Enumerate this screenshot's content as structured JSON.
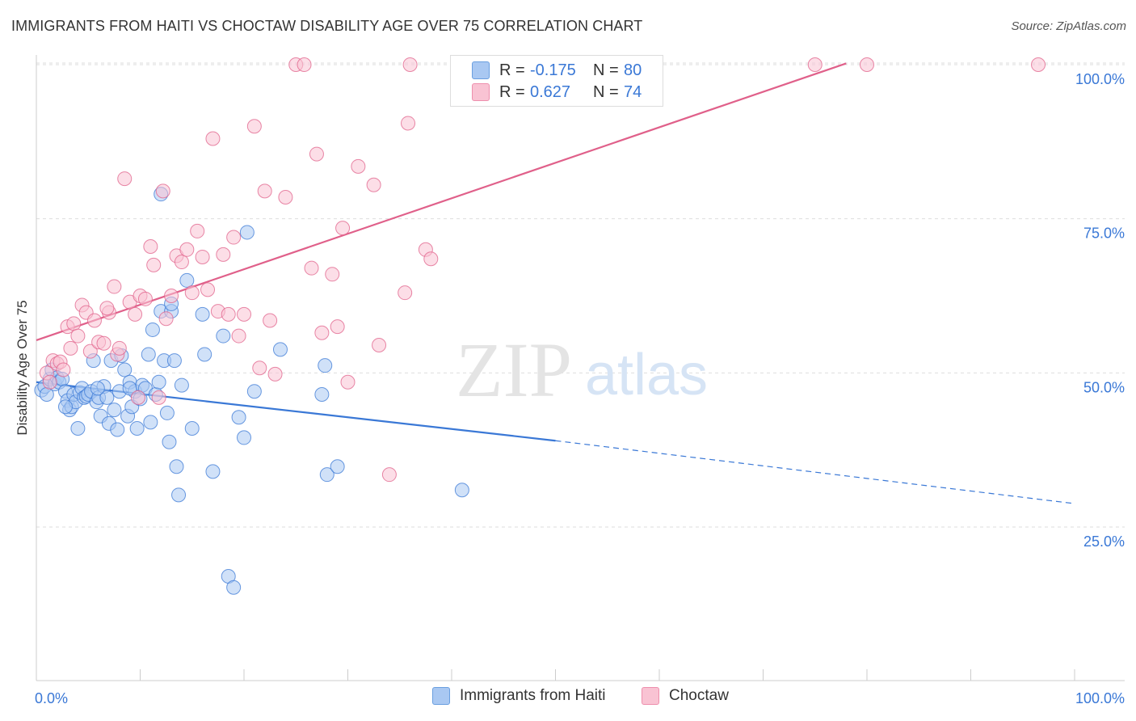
{
  "title": "IMMIGRANTS FROM HAITI VS CHOCTAW DISABILITY AGE OVER 75 CORRELATION CHART",
  "source": "Source: ZipAtlas.com",
  "watermark": {
    "zip": "ZIP",
    "atlas": "atlas"
  },
  "legend_top": {
    "rows": [
      {
        "r_label": "R =",
        "r_value": "-0.175",
        "n_label": "N =",
        "n_value": "80",
        "color": "#a9c8f2",
        "stroke": "#6a9fe0"
      },
      {
        "r_label": "R =",
        "r_value": "0.627",
        "n_label": "N =",
        "n_value": "74",
        "color": "#f9c3d3",
        "stroke": "#ee8fad"
      }
    ]
  },
  "chart_data": {
    "type": "scatter",
    "title": "IMMIGRANTS FROM HAITI VS CHOCTAW DISABILITY AGE OVER 75 CORRELATION CHART",
    "xlabel": "",
    "ylabel": "Disability Age Over 75",
    "xlim": [
      0,
      100
    ],
    "ylim": [
      0,
      103
    ],
    "x_tick_labels": [
      "0.0%",
      "100.0%"
    ],
    "y_ticks": [
      25,
      50,
      75,
      100
    ],
    "y_tick_labels": [
      "25.0%",
      "50.0%",
      "75.0%",
      "100.0%"
    ],
    "grid": true,
    "legend_position": "top-center",
    "series": [
      {
        "name": "Immigrants from Haiti",
        "color": "#3a78d6",
        "fill": "#a9c8f2",
        "points": [
          [
            0.5,
            47.2
          ],
          [
            0.8,
            47.8
          ],
          [
            1.0,
            46.5
          ],
          [
            1.3,
            49.0
          ],
          [
            1.5,
            50.5
          ],
          [
            1.8,
            48.2
          ],
          [
            2.0,
            49.2
          ],
          [
            2.2,
            48.5
          ],
          [
            2.5,
            49.0
          ],
          [
            2.8,
            47.0
          ],
          [
            3.0,
            45.5
          ],
          [
            3.2,
            44.0
          ],
          [
            3.4,
            44.5
          ],
          [
            3.6,
            46.5
          ],
          [
            3.8,
            45.3
          ],
          [
            4.0,
            41.0
          ],
          [
            4.2,
            46.8
          ],
          [
            4.4,
            47.5
          ],
          [
            4.6,
            46.0
          ],
          [
            4.8,
            46.2
          ],
          [
            5.0,
            46.5
          ],
          [
            5.3,
            47.0
          ],
          [
            5.5,
            52.0
          ],
          [
            5.8,
            45.3
          ],
          [
            6.0,
            46.0
          ],
          [
            6.2,
            43.0
          ],
          [
            6.5,
            47.8
          ],
          [
            6.8,
            46.0
          ],
          [
            7.0,
            41.8
          ],
          [
            7.2,
            52.0
          ],
          [
            7.5,
            44.0
          ],
          [
            7.8,
            40.8
          ],
          [
            8.0,
            47.0
          ],
          [
            8.2,
            52.8
          ],
          [
            8.5,
            50.5
          ],
          [
            8.8,
            43.0
          ],
          [
            9.0,
            48.5
          ],
          [
            9.2,
            44.5
          ],
          [
            9.5,
            47.0
          ],
          [
            9.7,
            41.0
          ],
          [
            10.0,
            45.8
          ],
          [
            10.2,
            48.0
          ],
          [
            10.5,
            47.5
          ],
          [
            10.8,
            53.0
          ],
          [
            11.0,
            42.0
          ],
          [
            11.2,
            57.0
          ],
          [
            11.5,
            46.5
          ],
          [
            11.8,
            48.5
          ],
          [
            12.0,
            60.0
          ],
          [
            12.3,
            52.0
          ],
          [
            12.6,
            43.5
          ],
          [
            12.8,
            38.8
          ],
          [
            13.0,
            60.0
          ],
          [
            13.3,
            52.0
          ],
          [
            13.5,
            34.8
          ],
          [
            13.7,
            30.2
          ],
          [
            14.0,
            48.0
          ],
          [
            14.5,
            65.0
          ],
          [
            15.0,
            41.0
          ],
          [
            16.0,
            59.5
          ],
          [
            16.2,
            53.0
          ],
          [
            17.0,
            34.0
          ],
          [
            18.0,
            56.0
          ],
          [
            18.5,
            17.0
          ],
          [
            19.0,
            15.2
          ],
          [
            19.5,
            42.8
          ],
          [
            20.0,
            39.5
          ],
          [
            20.3,
            72.8
          ],
          [
            21.0,
            47.0
          ],
          [
            23.5,
            53.8
          ],
          [
            27.5,
            46.5
          ],
          [
            27.8,
            51.2
          ],
          [
            28.0,
            33.5
          ],
          [
            29.0,
            34.8
          ],
          [
            41.0,
            31.0
          ],
          [
            12.0,
            79.0
          ],
          [
            9.0,
            47.5
          ],
          [
            2.8,
            44.5
          ],
          [
            5.9,
            47.5
          ],
          [
            13.0,
            61.2
          ]
        ]
      },
      {
        "name": "Choctaw",
        "color": "#e0608a",
        "fill": "#f9c3d3",
        "points": [
          [
            1.0,
            50.0
          ],
          [
            1.3,
            48.5
          ],
          [
            1.6,
            52.0
          ],
          [
            2.0,
            51.5
          ],
          [
            2.3,
            51.8
          ],
          [
            2.6,
            50.5
          ],
          [
            3.0,
            57.5
          ],
          [
            3.3,
            54.0
          ],
          [
            3.6,
            58.0
          ],
          [
            4.0,
            56.0
          ],
          [
            4.4,
            61.0
          ],
          [
            4.8,
            59.8
          ],
          [
            5.2,
            53.5
          ],
          [
            5.6,
            58.5
          ],
          [
            6.0,
            55.0
          ],
          [
            6.5,
            54.8
          ],
          [
            7.0,
            59.8
          ],
          [
            7.5,
            64.0
          ],
          [
            7.8,
            53.0
          ],
          [
            8.0,
            54.0
          ],
          [
            8.5,
            81.5
          ],
          [
            9.0,
            61.5
          ],
          [
            9.5,
            59.5
          ],
          [
            9.8,
            46.0
          ],
          [
            10.0,
            62.5
          ],
          [
            10.5,
            62.0
          ],
          [
            11.0,
            70.5
          ],
          [
            11.3,
            67.5
          ],
          [
            11.8,
            46.0
          ],
          [
            12.2,
            79.5
          ],
          [
            12.5,
            58.8
          ],
          [
            13.0,
            62.5
          ],
          [
            13.5,
            69.0
          ],
          [
            14.0,
            68.0
          ],
          [
            14.5,
            70.0
          ],
          [
            15.0,
            63.0
          ],
          [
            15.5,
            73.0
          ],
          [
            16.0,
            68.8
          ],
          [
            16.5,
            63.5
          ],
          [
            17.0,
            88.0
          ],
          [
            17.5,
            60.0
          ],
          [
            18.0,
            69.2
          ],
          [
            18.5,
            59.5
          ],
          [
            19.0,
            72.0
          ],
          [
            19.5,
            56.0
          ],
          [
            20.0,
            59.5
          ],
          [
            21.0,
            90.0
          ],
          [
            21.5,
            50.8
          ],
          [
            22.0,
            79.5
          ],
          [
            22.5,
            58.5
          ],
          [
            23.0,
            49.8
          ],
          [
            24.0,
            78.5
          ],
          [
            25.0,
            100.0
          ],
          [
            25.8,
            100.0
          ],
          [
            26.5,
            67.0
          ],
          [
            27.0,
            85.5
          ],
          [
            27.5,
            56.5
          ],
          [
            28.5,
            66.0
          ],
          [
            29.0,
            57.5
          ],
          [
            29.5,
            73.5
          ],
          [
            30.0,
            48.5
          ],
          [
            31.0,
            83.5
          ],
          [
            32.5,
            80.5
          ],
          [
            33.0,
            54.5
          ],
          [
            34.0,
            33.5
          ],
          [
            35.5,
            63.0
          ],
          [
            35.8,
            90.5
          ],
          [
            36.0,
            100.0
          ],
          [
            37.5,
            70.0
          ],
          [
            38.0,
            68.5
          ],
          [
            75.0,
            100.0
          ],
          [
            80.0,
            100.0
          ],
          [
            96.5,
            100.0
          ],
          [
            6.8,
            60.5
          ]
        ]
      }
    ],
    "trend_lines": [
      {
        "series": "Immigrants from Haiti",
        "x_solid": [
          0,
          50
        ],
        "y_solid": [
          48.5,
          39
        ],
        "x_dashed": [
          50,
          100
        ],
        "y_dashed": [
          39,
          28.8
        ]
      },
      {
        "series": "Choctaw",
        "x_solid": [
          0,
          78
        ],
        "y_solid": [
          55.3,
          100.2
        ]
      }
    ]
  },
  "legend_bottom": {
    "items": [
      {
        "label": "Immigrants from Haiti",
        "color": "#a9c8f2",
        "stroke": "#6a9fe0"
      },
      {
        "label": "Choctaw",
        "color": "#f9c3d3",
        "stroke": "#ee8fad"
      }
    ]
  }
}
